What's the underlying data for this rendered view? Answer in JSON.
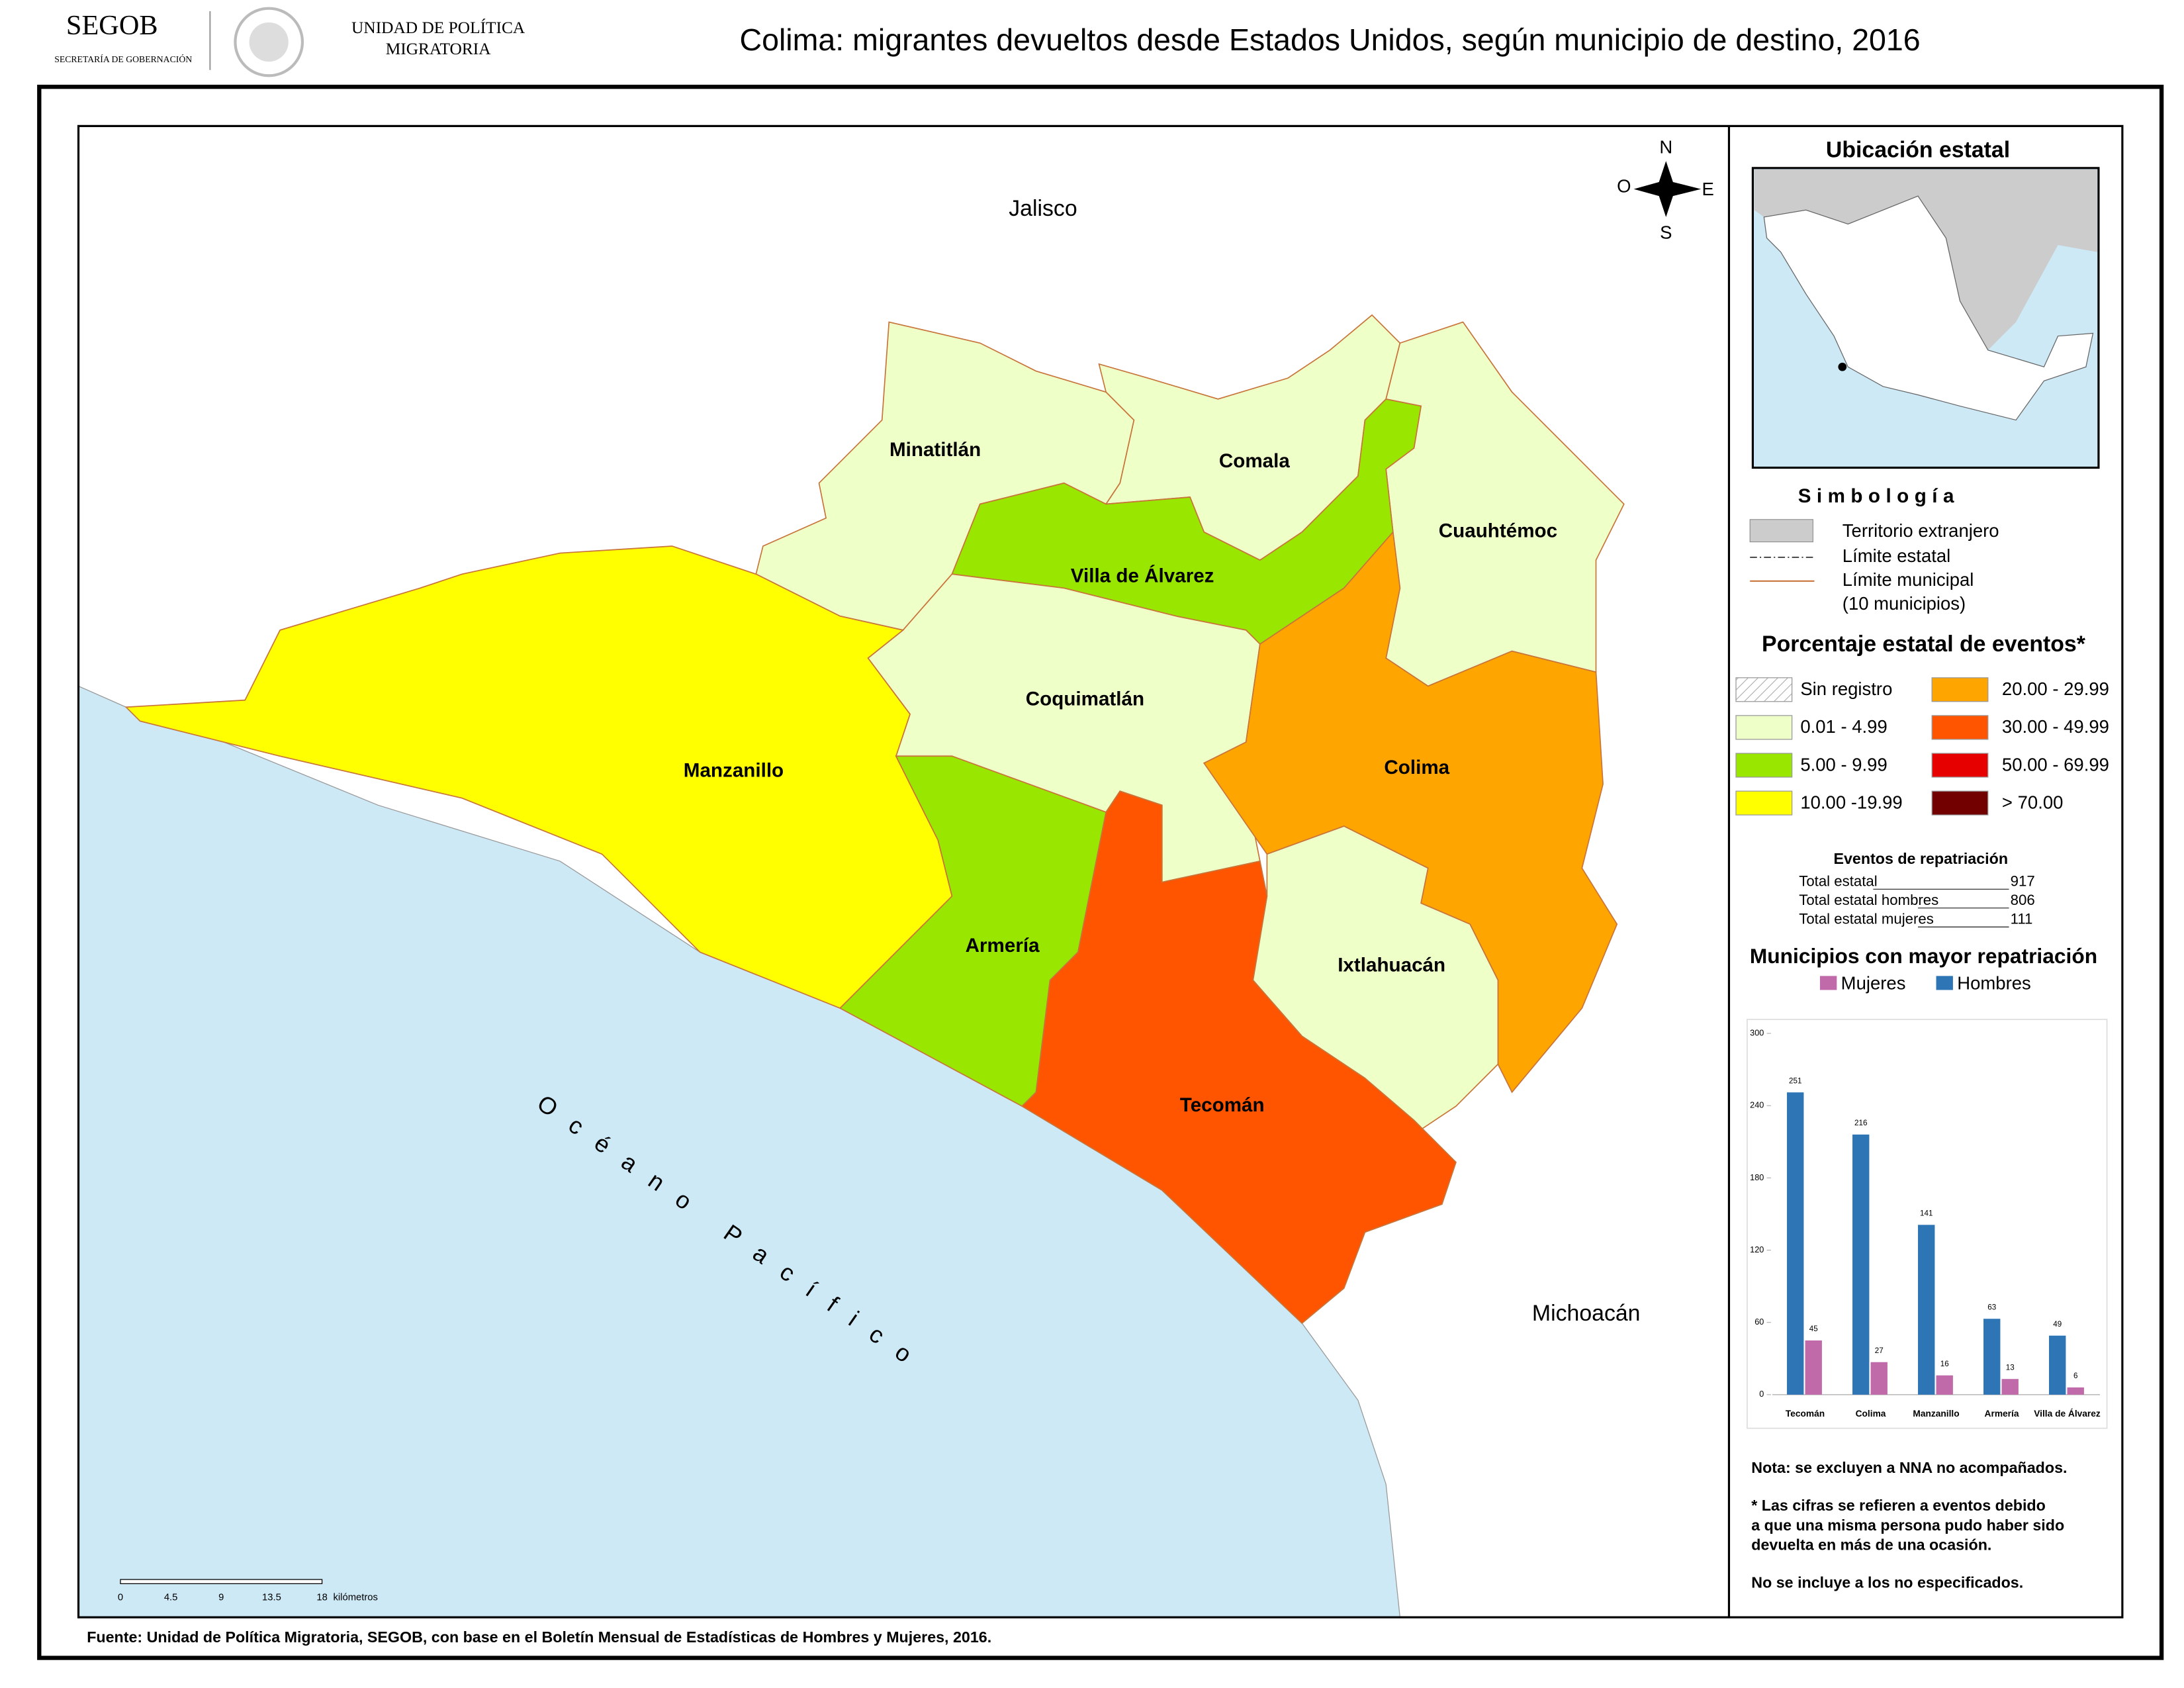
{
  "header": {
    "org": "SEGOB",
    "org_subtitle": "SECRETARÍA DE GOBERNACIÓN",
    "unit": [
      "UNIDAD DE POLÍTICA",
      "MIGRATORIA"
    ],
    "title": "Colima: migrantes devueltos desde Estados Unidos, según municipio de destino, 2016"
  },
  "map": {
    "neighbors": [
      "Jalisco",
      "Michoacán"
    ],
    "ocean": "Océano Pacífico",
    "compass": [
      "N",
      "O",
      "E",
      "S"
    ],
    "municipalities": [
      {
        "name": "Minatitlán",
        "class": 1
      },
      {
        "name": "Comala",
        "class": 1
      },
      {
        "name": "Cuauhtémoc",
        "class": 1
      },
      {
        "name": "Villa de Álvarez",
        "class": 2
      },
      {
        "name": "Coquimatlán",
        "class": 1
      },
      {
        "name": "Manzanillo",
        "class": 3
      },
      {
        "name": "Colima",
        "class": 4
      },
      {
        "name": "Armería",
        "class": 2
      },
      {
        "name": "Ixtlahuacán",
        "class": 1
      },
      {
        "name": "Tecomán",
        "class": 5
      }
    ],
    "scale": {
      "ticks": [
        0,
        4.5,
        9,
        13.5,
        18
      ],
      "unit": "kilómetros"
    }
  },
  "location": {
    "title": "Ubicación estatal"
  },
  "symbology": {
    "title": "Simbología",
    "items": [
      "Territorio extranjero",
      "Límite estatal",
      "Límite municipal",
      "(10 municipios)"
    ]
  },
  "legend": {
    "title": "Porcentaje estatal de eventos*",
    "classes": [
      {
        "label": "Sin registro"
      },
      {
        "label": "0.01  - 4.99",
        "color": "#eeffc8"
      },
      {
        "label": "5.00  - 9.99",
        "color": "#99e600"
      },
      {
        "label": "10.00 -19.99",
        "color": "#ffff00"
      },
      {
        "label": "20.00 - 29.99",
        "color": "#ffa500"
      },
      {
        "label": "30.00 - 49.99",
        "color": "#ff5500"
      },
      {
        "label": "50.00 - 69.99",
        "color": "#e60000"
      },
      {
        "label": "> 70.00",
        "color": "#730000"
      }
    ]
  },
  "totals": {
    "title": "Eventos de repatriación",
    "rows": [
      {
        "label": "Total estatal",
        "value": 917
      },
      {
        "label": "Total estatal hombres",
        "value": 806
      },
      {
        "label": "Total estatal mujeres",
        "value": 111
      }
    ]
  },
  "chart_data": {
    "type": "bar",
    "title": "Municipios con mayor repatriación",
    "categories": [
      "Tecomán",
      "Colima",
      "Manzanillo",
      "Armería",
      "Villa de Álvarez"
    ],
    "series": [
      {
        "name": "Mujeres",
        "color": "#c06aa9",
        "values": [
          45,
          27,
          16,
          13,
          6
        ]
      },
      {
        "name": "Hombres",
        "color": "#2e75b6",
        "values": [
          251,
          216,
          141,
          63,
          49
        ]
      }
    ],
    "ylim": [
      0,
      300
    ],
    "yticks": [
      0,
      60,
      120,
      180,
      240,
      300
    ]
  },
  "notes": [
    "Nota: se excluyen a NNA no acompañados.",
    "* Las cifras se refieren a eventos debido",
    "a que una misma persona pudo haber sido",
    "devuelta en más de una ocasión.",
    "No se incluye a los no especificados."
  ],
  "source": "Fuente: Unidad de Política Migratoria, SEGOB, con base en el Boletín Mensual de Estadísticas de Hombres y Mujeres, 2016."
}
